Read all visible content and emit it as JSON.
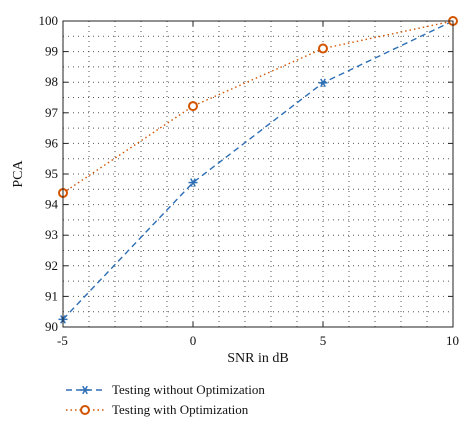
{
  "chart_data": {
    "type": "line",
    "xlabel": "SNR in dB",
    "ylabel": "PCA",
    "xlim": [
      -5,
      10
    ],
    "ylim": [
      90,
      100
    ],
    "x_ticks": [
      "-5",
      "0",
      "5",
      "10"
    ],
    "y_ticks": [
      "90",
      "91",
      "92",
      "93",
      "94",
      "95",
      "96",
      "97",
      "98",
      "99",
      "100"
    ],
    "grid": "dotted",
    "legend_position": "bottom",
    "x": [
      -5,
      0,
      5,
      10
    ],
    "series": [
      {
        "name": "Testing without Optimization",
        "values": [
          90.25,
          94.72,
          97.98,
          100.0
        ],
        "color": "#2e6fb5",
        "line_style": "dashed",
        "marker": "star"
      },
      {
        "name": "Testing with Optimization",
        "values": [
          94.38,
          97.22,
          99.1,
          100.0
        ],
        "color": "#d35400",
        "line_style": "dotted",
        "marker": "circle"
      }
    ]
  }
}
